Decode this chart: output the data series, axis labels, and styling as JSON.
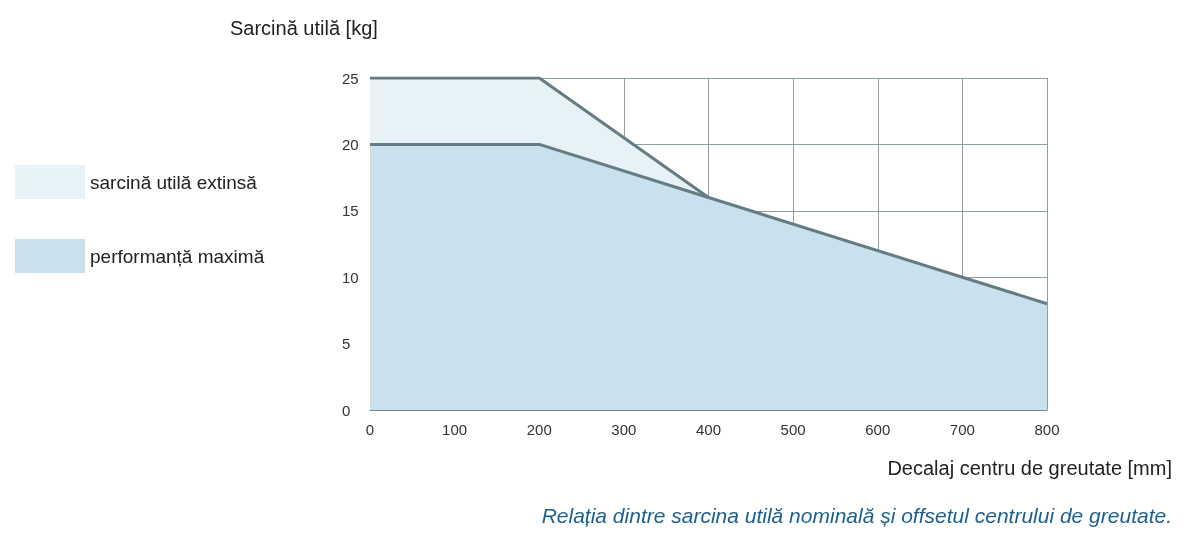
{
  "chart_data": {
    "type": "area",
    "ylabel": "Sarcină utilă [kg]",
    "xlabel": "Decalaj centru de greutate [mm]",
    "series": [
      {
        "name": "sarcină utilă extinsă",
        "color": "#e6f1f8",
        "x": [
          0,
          200,
          400
        ],
        "values": [
          25,
          25,
          16
        ]
      },
      {
        "name": "performanță maximă",
        "color": "#c9e0ed",
        "x": [
          0,
          200,
          400,
          700,
          800
        ],
        "values": [
          20,
          20,
          16,
          10,
          8
        ]
      }
    ],
    "xlim": [
      0,
      800
    ],
    "xticks": [
      0,
      100,
      200,
      300,
      400,
      500,
      600,
      700,
      800
    ],
    "ylim": [
      0,
      25
    ],
    "yticks": [
      0,
      5,
      10,
      15,
      20,
      25
    ],
    "grid": true,
    "legend": "left",
    "marker": "none",
    "line_style": "solid",
    "annotations": [
      "Relația dintre sarcina utilă nominală și offsetul centrului de greutate."
    ]
  }
}
